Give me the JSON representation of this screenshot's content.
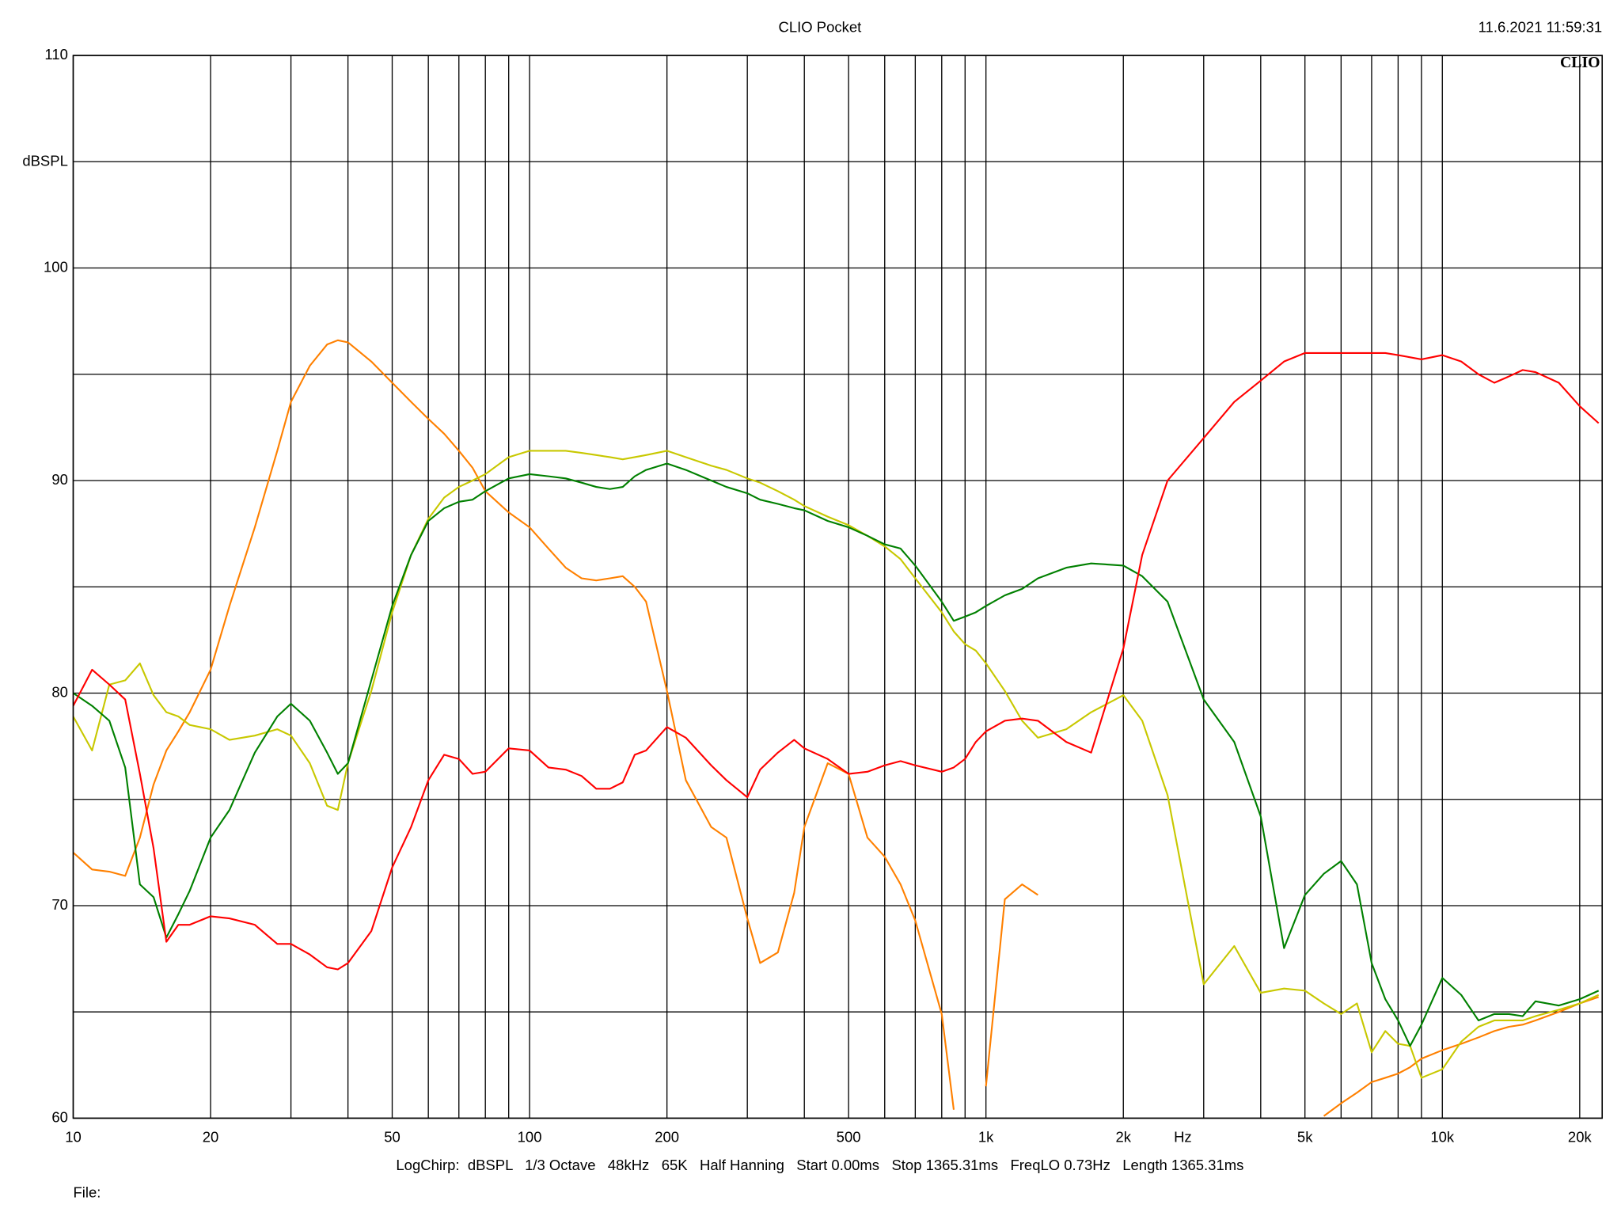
{
  "chart_data": {
    "type": "line",
    "title": "CLIO Pocket",
    "timestamp": "11.6.2021 11:59:31",
    "logo": "CLIO",
    "ylabel": "dBSPL",
    "xlabel": "Hz",
    "footer": "LogChirp:  dBSPL   1/3 Octave   48kHz   65K   Half Hanning   Start 0.00ms   Stop 1365.31ms   FreqLO 0.73Hz   Length 1365.31ms",
    "file_label": "File:",
    "xscale": "log",
    "grid": true,
    "xlim": [
      10,
      22400
    ],
    "ylim": [
      60,
      110
    ],
    "yticks": [
      60,
      70,
      80,
      90,
      100,
      110
    ],
    "y_minor_ticks": [
      65,
      75,
      85,
      95,
      105
    ],
    "xticks": [
      10,
      20,
      50,
      100,
      200,
      500,
      {
        "value": 1000,
        "label": "1k"
      },
      {
        "value": 2000,
        "label": "2k"
      },
      {
        "value": 5000,
        "label": "5k"
      },
      {
        "value": 10000,
        "label": "10k"
      },
      {
        "value": 20000,
        "label": "20k"
      }
    ],
    "x_minor_ticks": [
      30,
      40,
      60,
      70,
      80,
      90,
      300,
      400,
      600,
      700,
      800,
      900,
      3000,
      4000,
      6000,
      7000,
      8000,
      9000
    ],
    "x": [
      10,
      11,
      12,
      13,
      14,
      15,
      16,
      17,
      18,
      20,
      22,
      25,
      28,
      30,
      33,
      36,
      38,
      40,
      45,
      50,
      55,
      60,
      65,
      70,
      75,
      80,
      90,
      100,
      110,
      120,
      130,
      140,
      150,
      160,
      170,
      180,
      200,
      220,
      250,
      270,
      300,
      320,
      350,
      380,
      400,
      450,
      500,
      550,
      600,
      650,
      700,
      800,
      850,
      900,
      950,
      1000,
      1100,
      1200,
      1300,
      1500,
      1700,
      2000,
      2200,
      2500,
      3000,
      3500,
      4000,
      4500,
      5000,
      5500,
      6000,
      6500,
      7000,
      7500,
      8000,
      8500,
      9000,
      10000,
      11000,
      12000,
      13000,
      14000,
      15000,
      16000,
      18000,
      20000,
      22000
    ],
    "series": [
      {
        "color": "#ff8000",
        "values": [
          72.5,
          71.7,
          71.6,
          71.4,
          73.2,
          75.7,
          77.3,
          78.2,
          79.1,
          81.1,
          84.1,
          87.8,
          91.4,
          93.7,
          95.4,
          96.4,
          96.6,
          96.5,
          95.6,
          94.6,
          93.7,
          92.9,
          92.2,
          91.4,
          90.6,
          89.5,
          88.5,
          87.8,
          86.8,
          85.9,
          85.4,
          85.3,
          85.4,
          85.5,
          85.0,
          84.3,
          80.1,
          75.9,
          73.7,
          73.2,
          69.4,
          67.3,
          67.8,
          70.6,
          73.7,
          76.7,
          76.2,
          73.2,
          72.3,
          71.0,
          69.3,
          64.9,
          60.4,
          null,
          null,
          61.5,
          70.3,
          71.0,
          70.5,
          null,
          null,
          null,
          null,
          null,
          null,
          null,
          null,
          null,
          null,
          60.1,
          60.7,
          61.2,
          61.7,
          61.9,
          62.1,
          62.4,
          62.8,
          63.2,
          63.5,
          63.8,
          64.1,
          64.3,
          64.4,
          64.6,
          65.0,
          65.4,
          65.7
        ]
      },
      {
        "color": "#c8c800",
        "values": [
          78.9,
          77.3,
          80.4,
          80.6,
          81.4,
          79.9,
          79.1,
          78.9,
          78.5,
          78.3,
          77.8,
          78.0,
          78.3,
          78.0,
          76.7,
          74.7,
          74.5,
          76.7,
          80.1,
          83.8,
          86.5,
          88.2,
          89.2,
          89.7,
          90.0,
          90.3,
          91.1,
          91.4,
          91.4,
          91.4,
          91.3,
          91.2,
          91.1,
          91.0,
          91.1,
          91.2,
          91.4,
          91.1,
          90.7,
          90.5,
          90.1,
          89.9,
          89.5,
          89.1,
          88.8,
          88.3,
          87.9,
          87.4,
          86.9,
          86.3,
          85.4,
          83.8,
          82.9,
          82.3,
          82.0,
          81.4,
          80.1,
          78.7,
          77.9,
          78.3,
          79.1,
          79.9,
          78.7,
          75.2,
          66.3,
          68.1,
          65.9,
          66.1,
          66.0,
          65.4,
          64.9,
          65.4,
          63.1,
          64.1,
          63.5,
          63.4,
          61.9,
          62.3,
          63.6,
          64.3,
          64.6,
          64.6,
          64.6,
          64.8,
          65.1,
          65.4,
          65.8
        ]
      },
      {
        "color": "#008000",
        "values": [
          80.0,
          79.4,
          78.7,
          76.5,
          71.0,
          70.4,
          68.5,
          69.6,
          70.7,
          73.2,
          74.5,
          77.2,
          78.9,
          79.5,
          78.7,
          77.2,
          76.2,
          76.7,
          80.6,
          84.1,
          86.5,
          88.1,
          88.7,
          89.0,
          89.1,
          89.5,
          90.1,
          90.3,
          90.2,
          90.1,
          89.9,
          89.7,
          89.6,
          89.7,
          90.2,
          90.5,
          90.8,
          90.5,
          90.0,
          89.7,
          89.4,
          89.1,
          88.9,
          88.7,
          88.6,
          88.1,
          87.8,
          87.4,
          87.0,
          86.8,
          86.0,
          84.3,
          83.4,
          83.6,
          83.8,
          84.1,
          84.6,
          84.9,
          85.4,
          85.9,
          86.1,
          86.0,
          85.5,
          84.3,
          79.7,
          77.7,
          74.2,
          68.0,
          70.5,
          71.5,
          72.1,
          71.0,
          67.3,
          65.6,
          64.6,
          63.4,
          64.4,
          66.6,
          65.8,
          64.6,
          64.9,
          64.9,
          64.8,
          65.5,
          65.3,
          65.6,
          66.0
        ]
      },
      {
        "color": "#ff0000",
        "values": [
          79.4,
          81.1,
          80.4,
          79.7,
          76.2,
          72.7,
          68.3,
          69.1,
          69.1,
          69.5,
          69.4,
          69.1,
          68.2,
          68.2,
          67.7,
          67.1,
          67.0,
          67.3,
          68.8,
          71.8,
          73.7,
          75.9,
          77.1,
          76.9,
          76.2,
          76.3,
          77.4,
          77.3,
          76.5,
          76.4,
          76.1,
          75.5,
          75.5,
          75.8,
          77.1,
          77.3,
          78.4,
          77.9,
          76.6,
          75.9,
          75.1,
          76.4,
          77.2,
          77.8,
          77.4,
          76.9,
          76.2,
          76.3,
          76.6,
          76.8,
          76.6,
          76.3,
          76.5,
          76.9,
          77.7,
          78.2,
          78.7,
          78.8,
          78.7,
          77.7,
          77.2,
          82.1,
          86.5,
          90.0,
          92.0,
          93.7,
          94.7,
          95.6,
          96.0,
          96.0,
          96.0,
          96.0,
          96.0,
          96.0,
          95.9,
          95.8,
          95.7,
          95.9,
          95.6,
          95.0,
          94.6,
          94.9,
          95.2,
          95.1,
          94.6,
          93.5,
          92.7
        ]
      }
    ]
  }
}
